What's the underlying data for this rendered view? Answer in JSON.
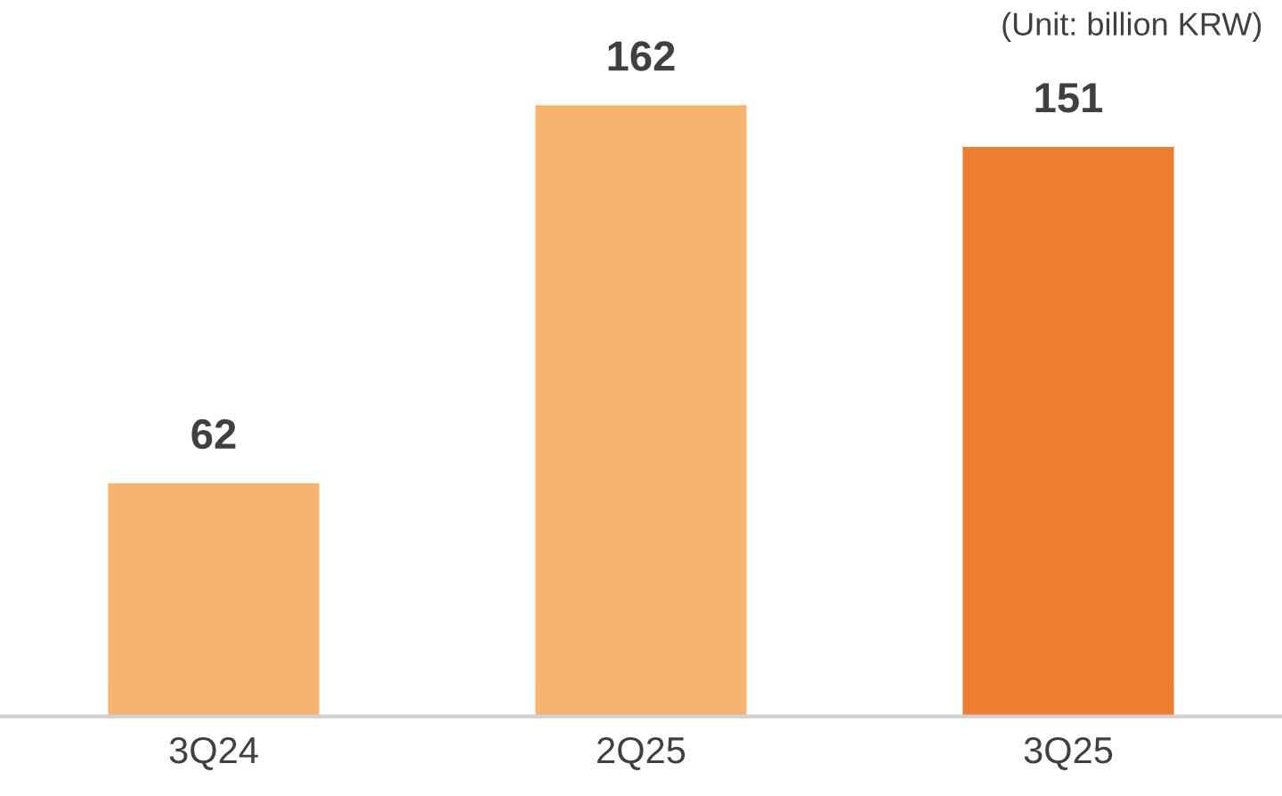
{
  "chart_data": {
    "type": "bar",
    "categories": [
      "3Q24",
      "2Q25",
      "3Q25"
    ],
    "values": [
      62,
      162,
      151
    ],
    "colors": [
      "#f7b26f",
      "#f7b26f",
      "#ed7d31"
    ],
    "data_labels": true,
    "grid": false,
    "legend": false,
    "tick_labels": "x",
    "annotations": [
      "(Unit: billion KRW)"
    ]
  }
}
